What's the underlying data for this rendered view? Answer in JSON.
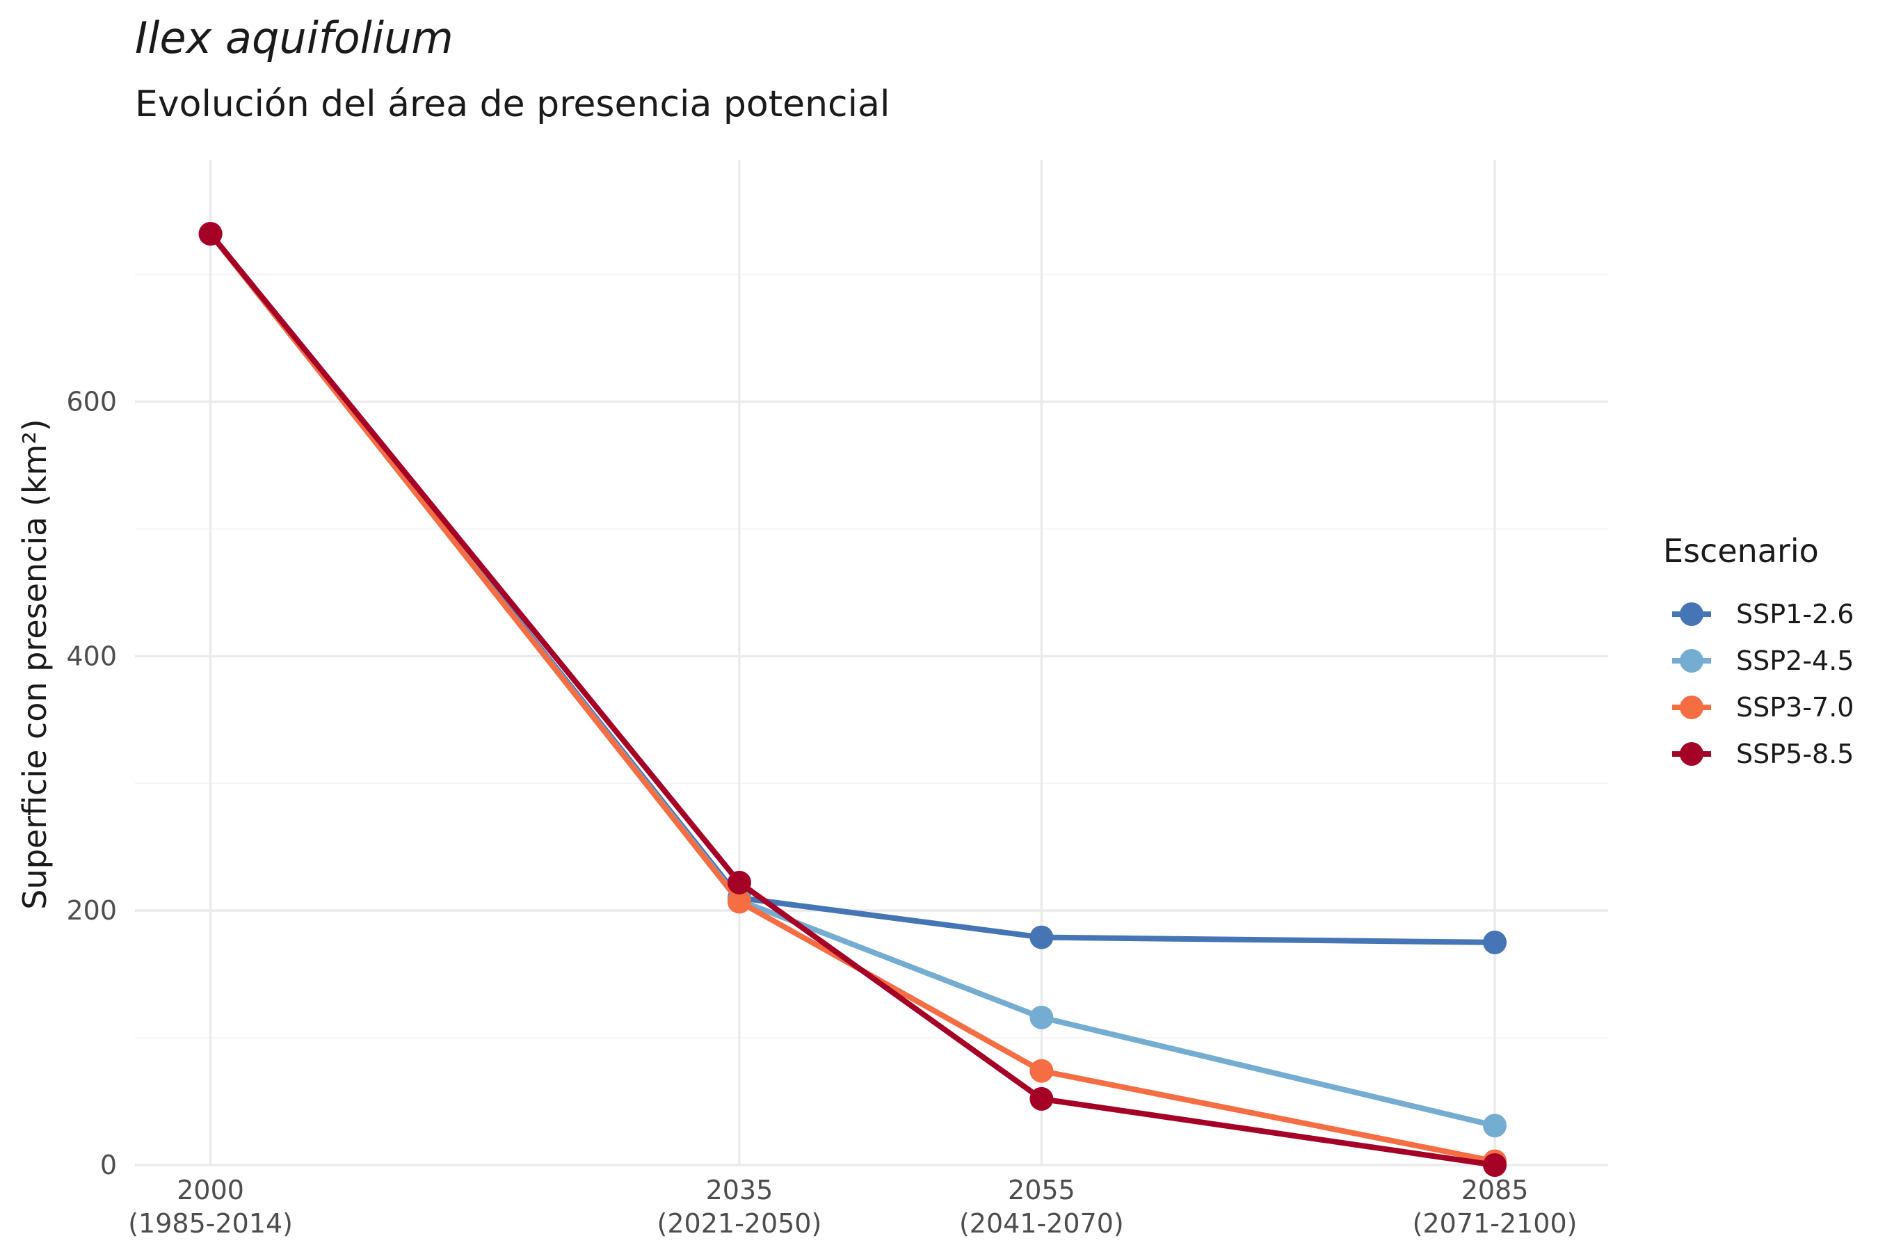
{
  "title": "Ilex aquifolium",
  "subtitle": "Evolución del área de presencia potencial",
  "chart_data": {
    "type": "line",
    "title": "Ilex aquifolium",
    "subtitle": "Evolución del área de presencia potencial",
    "xlabel": "",
    "ylabel": "Superficie con presencia (km²)",
    "ylim": [
      0,
      790
    ],
    "x": [
      2000,
      2035,
      2055,
      2085
    ],
    "xticks": [
      {
        "value": 2000,
        "line1": "2000",
        "line2": "(1985-2014)"
      },
      {
        "value": 2035,
        "line1": "2035",
        "line2": "(2021-2050)"
      },
      {
        "value": 2055,
        "line1": "2055",
        "line2": "(2041-2070)"
      },
      {
        "value": 2085,
        "line1": "2085",
        "line2": "(2071-2100)"
      }
    ],
    "yticks": [
      0,
      200,
      400,
      600
    ],
    "grid": true,
    "legend": {
      "title": "Escenario",
      "position": "right"
    },
    "series": [
      {
        "name": "SSP1-2.6",
        "color": "#4575b4",
        "values": [
          732,
          210,
          179,
          175
        ]
      },
      {
        "name": "SSP2-4.5",
        "color": "#74add1",
        "values": [
          732,
          208,
          116,
          31
        ]
      },
      {
        "name": "SSP3-7.0",
        "color": "#f46d43",
        "values": [
          732,
          207,
          74,
          3
        ]
      },
      {
        "name": "SSP5-8.5",
        "color": "#a50026",
        "values": [
          732,
          222,
          52,
          0
        ]
      }
    ]
  }
}
